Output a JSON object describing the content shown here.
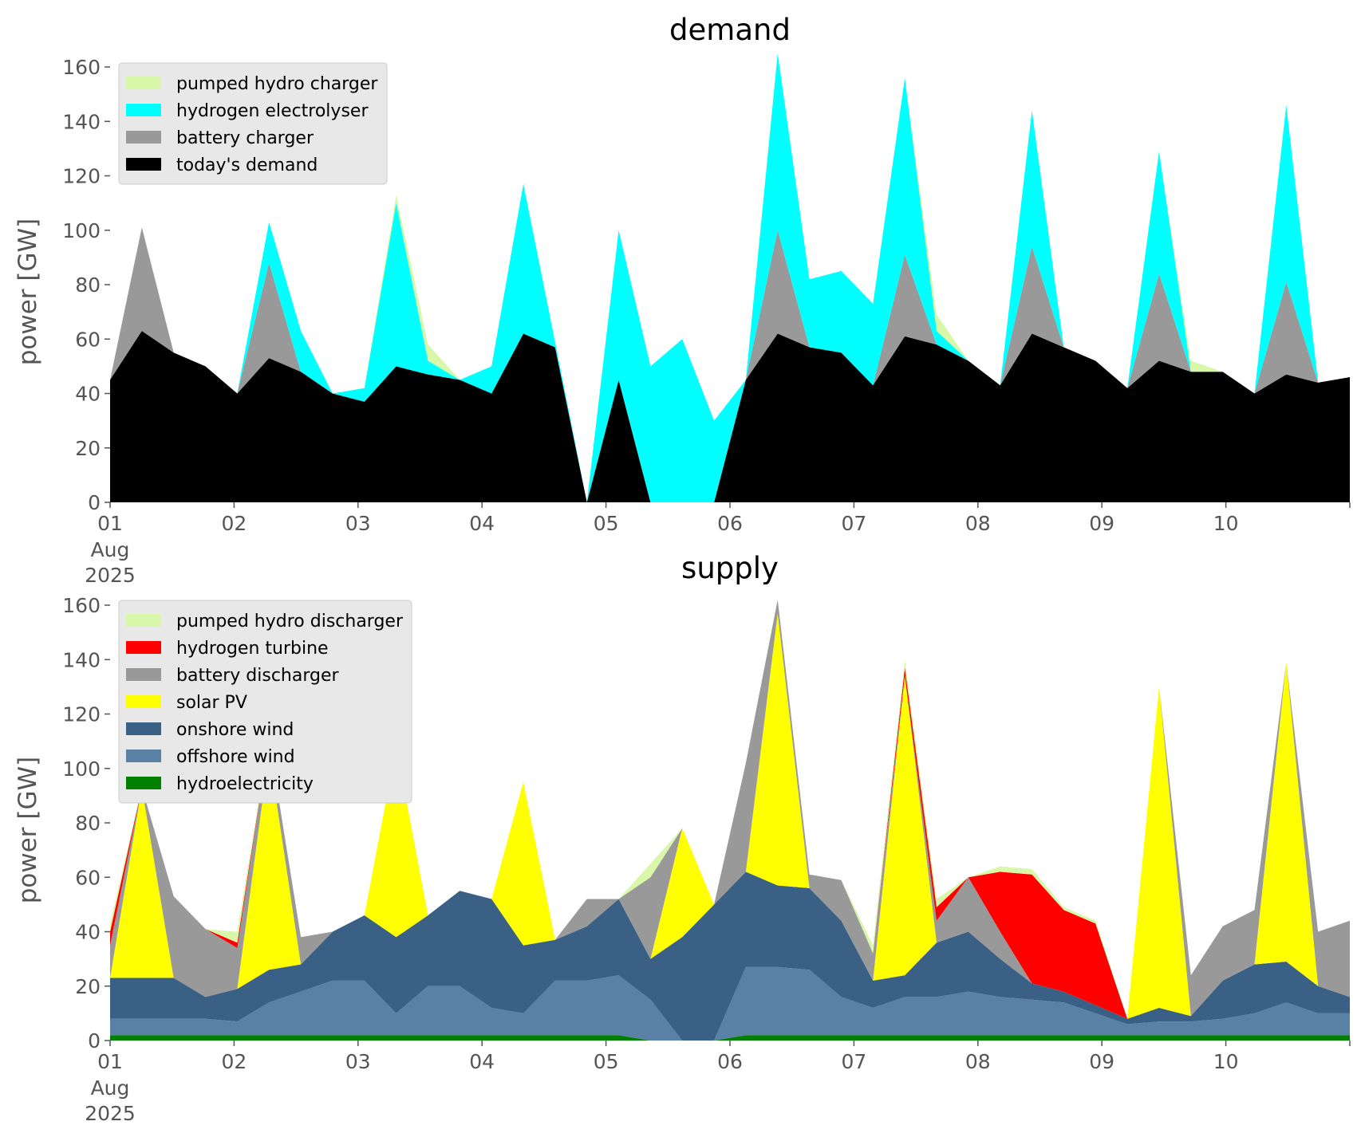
{
  "chart_data": [
    {
      "type": "area",
      "title": "demand",
      "ylabel": "power [GW]",
      "xlabel": "",
      "ylim": [
        0,
        160
      ],
      "yticks": [
        "0",
        "20",
        "40",
        "60",
        "80",
        "100",
        "120",
        "140",
        "160"
      ],
      "xticks": [
        "01",
        "02",
        "03",
        "04",
        "05",
        "06",
        "07",
        "08",
        "09",
        "10"
      ],
      "xtick_sub": [
        "Aug",
        "2025"
      ],
      "x_range": [
        "2025-08-01 00:00",
        "2025-08-10 23:00"
      ],
      "x_resolution": "6h",
      "grid": false,
      "legend_position": "upper-left",
      "series": [
        {
          "name": "pumped hydro charger",
          "color": "#d9f7a8",
          "values": [
            0,
            0,
            0,
            0,
            0,
            0,
            0,
            0,
            0,
            3,
            6,
            0,
            0,
            0,
            0,
            0,
            0,
            0,
            0,
            0,
            0,
            0,
            0,
            0,
            0,
            0,
            6,
            0,
            0,
            0,
            0,
            0,
            0,
            0,
            4,
            0,
            0,
            0,
            0,
            0
          ]
        },
        {
          "name": "hydrogen electrolyser",
          "color": "#00ffff",
          "values": [
            0,
            0,
            0,
            0,
            0,
            15,
            15,
            0,
            5,
            60,
            5,
            0,
            10,
            55,
            2,
            0,
            55,
            50,
            60,
            30,
            0,
            65,
            25,
            30,
            30,
            65,
            5,
            0,
            0,
            50,
            0,
            0,
            0,
            45,
            0,
            0,
            0,
            65,
            0,
            0
          ]
        },
        {
          "name": "battery charger",
          "color": "#999999",
          "values": [
            0,
            38,
            0,
            0,
            0,
            35,
            0,
            0,
            0,
            0,
            0,
            0,
            0,
            0,
            0,
            0,
            0,
            0,
            0,
            0,
            0,
            38,
            0,
            0,
            0,
            30,
            0,
            0,
            0,
            32,
            0,
            0,
            0,
            32,
            0,
            0,
            0,
            34,
            0,
            0
          ]
        },
        {
          "name": "today's demand",
          "color": "#000000",
          "values": [
            45,
            63,
            55,
            50,
            40,
            53,
            48,
            40,
            37,
            50,
            47,
            45,
            40,
            62,
            57,
            0,
            45,
            0,
            0,
            0,
            45,
            62,
            57,
            55,
            43,
            61,
            58,
            52,
            43,
            62,
            57,
            52,
            42,
            52,
            48,
            48,
            40,
            47,
            44,
            46
          ]
        }
      ]
    },
    {
      "type": "area",
      "title": "supply",
      "ylabel": "power [GW]",
      "xlabel": "",
      "ylim": [
        0,
        160
      ],
      "yticks": [
        "0",
        "20",
        "40",
        "60",
        "80",
        "100",
        "120",
        "140",
        "160"
      ],
      "xticks": [
        "01",
        "02",
        "03",
        "04",
        "05",
        "06",
        "07",
        "08",
        "09",
        "10"
      ],
      "xtick_sub": [
        "Aug",
        "2025"
      ],
      "x_range": [
        "2025-08-01 00:00",
        "2025-08-10 23:00"
      ],
      "x_resolution": "6h",
      "grid": false,
      "legend_position": "upper-left",
      "series": [
        {
          "name": "hydroelectricity",
          "color": "#008000",
          "values": [
            2,
            2,
            2,
            2,
            2,
            2,
            2,
            2,
            2,
            2,
            2,
            2,
            2,
            2,
            2,
            2,
            2,
            0,
            0,
            0,
            2,
            2,
            2,
            2,
            2,
            2,
            2,
            2,
            2,
            2,
            2,
            2,
            2,
            2,
            2,
            2,
            2,
            2,
            2,
            2
          ]
        },
        {
          "name": "offshore wind",
          "color": "#5b80a5",
          "values": [
            6,
            6,
            6,
            6,
            5,
            12,
            16,
            20,
            20,
            8,
            18,
            18,
            10,
            8,
            20,
            20,
            22,
            15,
            0,
            0,
            25,
            25,
            24,
            14,
            10,
            14,
            14,
            16,
            14,
            13,
            12,
            8,
            4,
            5,
            5,
            6,
            8,
            12,
            8,
            8
          ]
        },
        {
          "name": "onshore wind",
          "color": "#3a6185",
          "values": [
            15,
            15,
            15,
            8,
            12,
            12,
            10,
            18,
            24,
            28,
            26,
            35,
            40,
            25,
            15,
            20,
            28,
            15,
            38,
            50,
            35,
            30,
            30,
            28,
            10,
            8,
            20,
            22,
            14,
            6,
            4,
            3,
            2,
            5,
            2,
            14,
            18,
            15,
            10,
            6
          ]
        },
        {
          "name": "solar PV",
          "color": "#ffff00",
          "values": [
            0,
            70,
            0,
            0,
            0,
            80,
            0,
            0,
            0,
            70,
            0,
            0,
            0,
            60,
            0,
            0,
            0,
            0,
            40,
            0,
            0,
            100,
            0,
            0,
            0,
            110,
            0,
            0,
            0,
            0,
            0,
            0,
            0,
            118,
            0,
            0,
            0,
            110,
            0,
            0
          ]
        },
        {
          "name": "battery discharger",
          "color": "#999999",
          "values": [
            12,
            0,
            30,
            25,
            15,
            5,
            10,
            0,
            0,
            0,
            0,
            0,
            0,
            0,
            0,
            10,
            0,
            30,
            0,
            0,
            40,
            5,
            5,
            15,
            10,
            0,
            8,
            20,
            10,
            0,
            0,
            0,
            0,
            0,
            15,
            20,
            20,
            0,
            20,
            28
          ]
        },
        {
          "name": "hydrogen turbine",
          "color": "#ff0000",
          "values": [
            5,
            0,
            0,
            0,
            2,
            0,
            0,
            0,
            0,
            0,
            0,
            0,
            0,
            0,
            0,
            0,
            0,
            0,
            0,
            0,
            0,
            0,
            0,
            0,
            0,
            3,
            5,
            0,
            22,
            40,
            30,
            30,
            0,
            0,
            0,
            0,
            0,
            0,
            0,
            0
          ]
        },
        {
          "name": "pumped hydro discharger",
          "color": "#d9f7a8",
          "values": [
            3,
            0,
            0,
            0,
            4,
            0,
            0,
            0,
            0,
            0,
            0,
            0,
            0,
            0,
            0,
            0,
            0,
            5,
            0,
            0,
            0,
            0,
            0,
            0,
            3,
            3,
            3,
            0,
            2,
            2,
            1,
            1,
            0,
            0,
            0,
            0,
            0,
            0,
            0,
            0
          ]
        }
      ]
    }
  ]
}
